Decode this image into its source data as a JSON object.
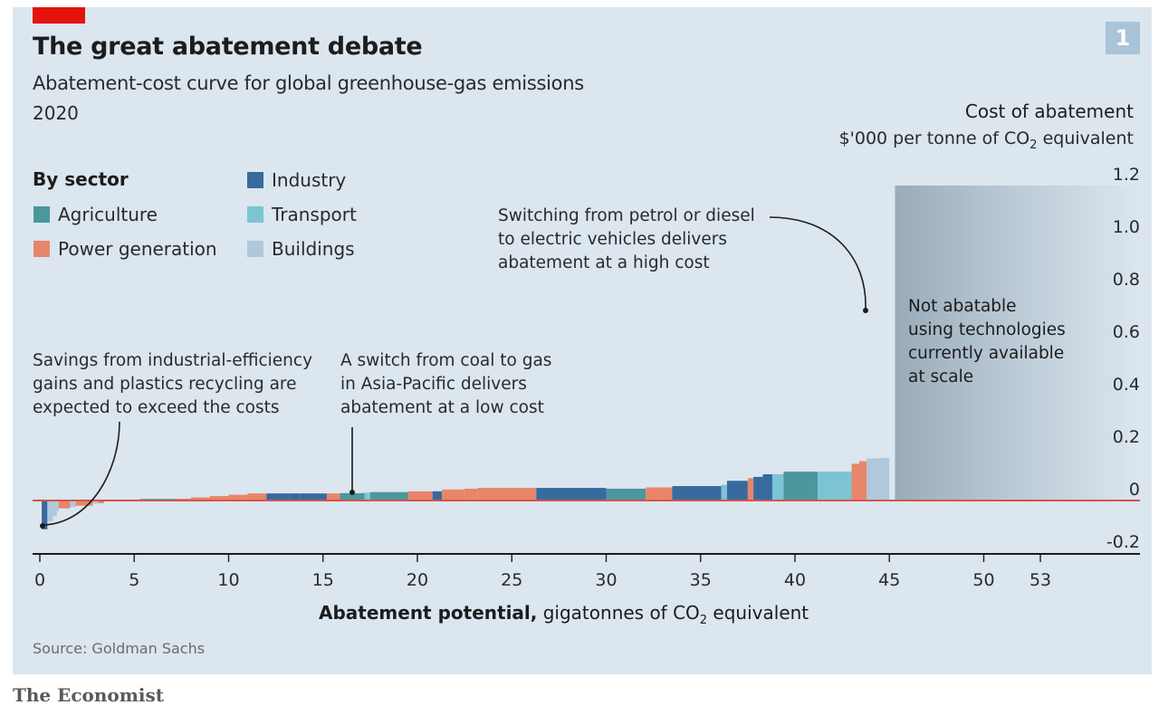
{
  "header": {
    "title": "The great abatement debate",
    "subtitle": "Abatement-cost curve for global greenhouse-gas emissions",
    "year": "2020",
    "badge": "1"
  },
  "legend": {
    "heading": "By sector",
    "items": [
      {
        "key": "agriculture",
        "label": "Agriculture",
        "color": "#4b979b"
      },
      {
        "key": "power",
        "label": "Power generation",
        "color": "#e8866a"
      },
      {
        "key": "industry",
        "label": "Industry",
        "color": "#376a9f"
      },
      {
        "key": "transport",
        "label": "Transport",
        "color": "#7cc4d4"
      },
      {
        "key": "buildings",
        "label": "Buildings",
        "color": "#b0c8db"
      }
    ]
  },
  "annotations": {
    "savings": "Savings from industrial-efficiency\ngains and plastics recycling are\nexpected to exceed the costs",
    "coal_gas": "A switch from coal to gas\nin Asia-Pacific delivers\nabatement at a low cost",
    "ev": "Switching from petrol or diesel\nto electric vehicles delivers\nabatement at a high cost",
    "not_abatable": "Not abatable\nusing technologies\ncurrently available\nat scale"
  },
  "source": "Source: Goldman Sachs",
  "brand": "The Economist",
  "chart_data": {
    "type": "bar",
    "title": "The great abatement debate",
    "ylabel_line1": "Cost of abatement",
    "ylabel_line2_prefix": "$'000 per tonne of CO",
    "ylabel_line2_sub": "2",
    "ylabel_line2_suffix": " equivalent",
    "xlabel_bold": "Abatement potential,",
    "xlabel_rest_prefix": " gigatonnes of CO",
    "xlabel_rest_sub": "2",
    "xlabel_rest_suffix": " equivalent",
    "xlim": [
      0,
      58
    ],
    "ylim": [
      -0.2,
      1.2
    ],
    "xticks": [
      0,
      5,
      10,
      15,
      20,
      25,
      30,
      35,
      40,
      45,
      50,
      53
    ],
    "yticks": [
      -0.2,
      0,
      0.2,
      0.4,
      0.6,
      0.8,
      1.0,
      1.2
    ],
    "ytick_labels": [
      "-0.2",
      "0",
      "0.2",
      "0.4",
      "0.6",
      "0.8",
      "1.0",
      "1.2"
    ],
    "grid": true,
    "legend_position": "top-left",
    "bars": [
      {
        "x0": 0.1,
        "x1": 0.4,
        "cost": -0.11,
        "sector": "industry"
      },
      {
        "x0": 0.4,
        "x1": 0.7,
        "cost": -0.08,
        "sector": "buildings"
      },
      {
        "x0": 0.7,
        "x1": 0.9,
        "cost": -0.06,
        "sector": "buildings"
      },
      {
        "x0": 0.9,
        "x1": 1.0,
        "cost": -0.04,
        "sector": "buildings"
      },
      {
        "x0": 1.0,
        "x1": 1.6,
        "cost": -0.03,
        "sector": "power"
      },
      {
        "x0": 1.6,
        "x1": 1.9,
        "cost": -0.025,
        "sector": "buildings"
      },
      {
        "x0": 1.9,
        "x1": 2.8,
        "cost": -0.02,
        "sector": "power"
      },
      {
        "x0": 2.8,
        "x1": 3.1,
        "cost": -0.012,
        "sector": "buildings"
      },
      {
        "x0": 3.1,
        "x1": 3.4,
        "cost": -0.01,
        "sector": "power"
      },
      {
        "x0": 3.4,
        "x1": 4.5,
        "cost": -0.003,
        "sector": "power"
      },
      {
        "x0": 4.5,
        "x1": 5.3,
        "cost": 0.003,
        "sector": "power"
      },
      {
        "x0": 5.3,
        "x1": 7.3,
        "cost": 0.006,
        "sector": "agriculture"
      },
      {
        "x0": 7.3,
        "x1": 8.0,
        "cost": 0.007,
        "sector": "power"
      },
      {
        "x0": 8.0,
        "x1": 9.0,
        "cost": 0.012,
        "sector": "power"
      },
      {
        "x0": 9.0,
        "x1": 10.0,
        "cost": 0.017,
        "sector": "power"
      },
      {
        "x0": 10.0,
        "x1": 11.0,
        "cost": 0.022,
        "sector": "power"
      },
      {
        "x0": 11.0,
        "x1": 12.0,
        "cost": 0.027,
        "sector": "power"
      },
      {
        "x0": 12.0,
        "x1": 13.2,
        "cost": 0.027,
        "sector": "industry"
      },
      {
        "x0": 13.2,
        "x1": 13.8,
        "cost": 0.027,
        "sector": "industry"
      },
      {
        "x0": 13.8,
        "x1": 15.2,
        "cost": 0.027,
        "sector": "industry"
      },
      {
        "x0": 15.2,
        "x1": 15.9,
        "cost": 0.027,
        "sector": "power"
      },
      {
        "x0": 15.9,
        "x1": 17.2,
        "cost": 0.028,
        "sector": "agriculture"
      },
      {
        "x0": 17.2,
        "x1": 17.5,
        "cost": 0.03,
        "sector": "transport"
      },
      {
        "x0": 17.5,
        "x1": 19.5,
        "cost": 0.032,
        "sector": "agriculture"
      },
      {
        "x0": 19.5,
        "x1": 20.8,
        "cost": 0.035,
        "sector": "power"
      },
      {
        "x0": 20.8,
        "x1": 21.3,
        "cost": 0.035,
        "sector": "industry"
      },
      {
        "x0": 21.3,
        "x1": 22.5,
        "cost": 0.042,
        "sector": "power"
      },
      {
        "x0": 22.5,
        "x1": 23.2,
        "cost": 0.045,
        "sector": "power"
      },
      {
        "x0": 23.2,
        "x1": 26.3,
        "cost": 0.048,
        "sector": "power"
      },
      {
        "x0": 26.3,
        "x1": 30.0,
        "cost": 0.048,
        "sector": "industry"
      },
      {
        "x0": 30.0,
        "x1": 32.1,
        "cost": 0.045,
        "sector": "agriculture"
      },
      {
        "x0": 32.1,
        "x1": 33.0,
        "cost": 0.05,
        "sector": "power"
      },
      {
        "x0": 33.0,
        "x1": 33.5,
        "cost": 0.05,
        "sector": "power"
      },
      {
        "x0": 33.5,
        "x1": 36.1,
        "cost": 0.055,
        "sector": "industry"
      },
      {
        "x0": 36.1,
        "x1": 36.4,
        "cost": 0.06,
        "sector": "transport"
      },
      {
        "x0": 36.4,
        "x1": 37.5,
        "cost": 0.075,
        "sector": "industry"
      },
      {
        "x0": 37.5,
        "x1": 37.8,
        "cost": 0.085,
        "sector": "power"
      },
      {
        "x0": 37.8,
        "x1": 38.3,
        "cost": 0.09,
        "sector": "industry"
      },
      {
        "x0": 38.3,
        "x1": 38.8,
        "cost": 0.1,
        "sector": "industry"
      },
      {
        "x0": 38.8,
        "x1": 39.4,
        "cost": 0.1,
        "sector": "transport"
      },
      {
        "x0": 39.4,
        "x1": 41.2,
        "cost": 0.11,
        "sector": "agriculture"
      },
      {
        "x0": 41.2,
        "x1": 43.0,
        "cost": 0.11,
        "sector": "transport"
      },
      {
        "x0": 43.0,
        "x1": 43.4,
        "cost": 0.14,
        "sector": "power"
      },
      {
        "x0": 43.4,
        "x1": 43.8,
        "cost": 0.15,
        "sector": "power"
      },
      {
        "x0": 43.8,
        "x1": 44.4,
        "cost": 0.16,
        "sector": "buildings"
      },
      {
        "x0": 44.4,
        "x1": 45.0,
        "cost": 0.162,
        "sector": "buildings"
      }
    ]
  }
}
